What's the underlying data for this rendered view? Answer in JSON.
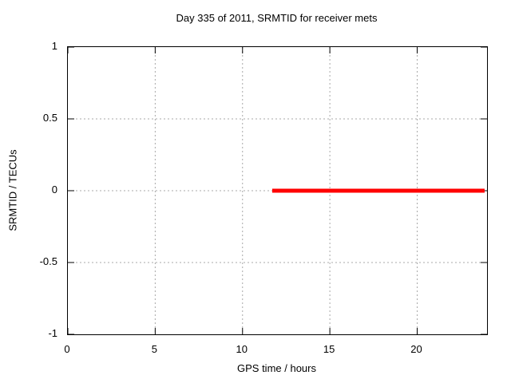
{
  "chart_data": {
    "type": "line",
    "title": "Day 335 of 2011, SRMTID for receiver mets",
    "xlabel": "GPS time / hours",
    "ylabel": "SRMTID / TECUs",
    "xlim": [
      0,
      24
    ],
    "ylim": [
      -1,
      1
    ],
    "xticks": [
      0,
      5,
      10,
      15,
      20
    ],
    "yticks": [
      -1,
      -0.5,
      0,
      0.5,
      1
    ],
    "grid": true,
    "legend": "none",
    "series": [
      {
        "name": "SRMTID",
        "color": "#ff0000",
        "linewidth": 5,
        "x": [
          11.7,
          23.86
        ],
        "y": [
          0,
          0
        ]
      }
    ]
  },
  "colors": {
    "background": "#ffffff",
    "border": "#000000",
    "grid": "#a8a8a8",
    "text": "#000000",
    "series_red": "#ff0000"
  }
}
